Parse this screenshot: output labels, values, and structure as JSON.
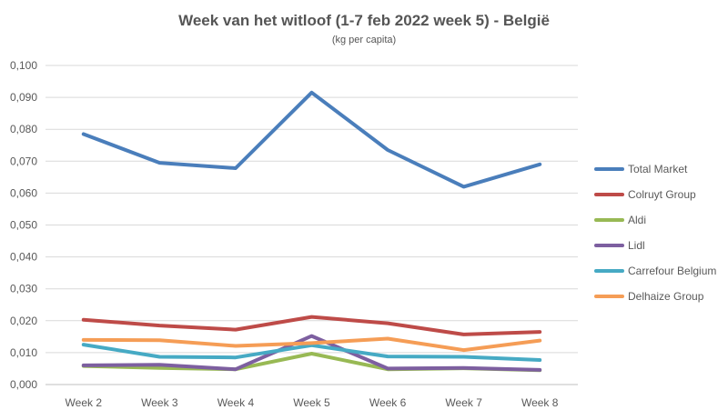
{
  "chart_data": {
    "type": "line",
    "title": "Week van het witloof (1-7 feb 2022 week 5) - België",
    "subtitle": "(kg per capita)",
    "xlabel": "",
    "ylabel": "",
    "categories": [
      "Week 2",
      "Week 3",
      "Week 4",
      "Week 5",
      "Week 6",
      "Week 7",
      "Week 8"
    ],
    "ylim": [
      0,
      0.1
    ],
    "yticks": [
      "0,000",
      "0,010",
      "0,020",
      "0,030",
      "0,040",
      "0,050",
      "0,060",
      "0,070",
      "0,080",
      "0,090",
      "0,100"
    ],
    "grid": true,
    "legend_position": "right",
    "series": [
      {
        "name": "Total Market",
        "color": "#4a7ebb",
        "values": [
          0.0785,
          0.0695,
          0.0678,
          0.0915,
          0.0735,
          0.062,
          0.069
        ]
      },
      {
        "name": "Colruyt Group",
        "color": "#be4b48",
        "values": [
          0.0203,
          0.0185,
          0.0172,
          0.0212,
          0.0192,
          0.0157,
          0.0165
        ]
      },
      {
        "name": "Aldi",
        "color": "#98b954",
        "values": [
          0.0058,
          0.0052,
          0.0048,
          0.0097,
          0.0048,
          0.0051,
          0.0045
        ]
      },
      {
        "name": "Lidl",
        "color": "#7d5fa0",
        "values": [
          0.006,
          0.0062,
          0.0048,
          0.0152,
          0.005,
          0.0052,
          0.0046
        ]
      },
      {
        "name": "Carrefour Belgium",
        "color": "#46aac4",
        "values": [
          0.0125,
          0.0087,
          0.0085,
          0.0123,
          0.0088,
          0.0087,
          0.0077
        ]
      },
      {
        "name": "Delhaize Group",
        "color": "#f59d56",
        "values": [
          0.014,
          0.0139,
          0.0121,
          0.013,
          0.0144,
          0.0108,
          0.0138
        ]
      }
    ]
  }
}
